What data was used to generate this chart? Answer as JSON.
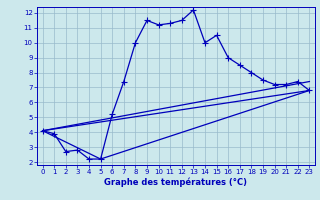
{
  "xlabel": "Graphe des températures (°C)",
  "bg_color": "#cce8ec",
  "line_color": "#0000bb",
  "grid_color": "#99bbcc",
  "xlim": [
    -0.5,
    23.5
  ],
  "ylim": [
    1.8,
    12.4
  ],
  "xticks": [
    0,
    1,
    2,
    3,
    4,
    5,
    6,
    7,
    8,
    9,
    10,
    11,
    12,
    13,
    14,
    15,
    16,
    17,
    18,
    19,
    20,
    21,
    22,
    23
  ],
  "yticks": [
    2,
    3,
    4,
    5,
    6,
    7,
    8,
    9,
    10,
    11,
    12
  ],
  "curve1_x": [
    0,
    1,
    2,
    3,
    4,
    5,
    6,
    7,
    8,
    9,
    10,
    11,
    12,
    13,
    14,
    15,
    16,
    17,
    18,
    19,
    20,
    21,
    22,
    23
  ],
  "curve1_y": [
    4.1,
    3.9,
    2.7,
    2.8,
    2.2,
    2.2,
    5.2,
    7.4,
    10.0,
    11.5,
    11.2,
    11.3,
    11.5,
    12.2,
    10.0,
    10.5,
    9.0,
    8.5,
    8.0,
    7.5,
    7.2,
    7.2,
    7.4,
    6.8
  ],
  "curve2_x": [
    0,
    5,
    23
  ],
  "curve2_y": [
    4.1,
    2.2,
    6.8
  ],
  "curve3_x": [
    0,
    23
  ],
  "curve3_y": [
    4.1,
    7.4
  ],
  "curve4_x": [
    0,
    23
  ],
  "curve4_y": [
    4.1,
    6.8
  ]
}
